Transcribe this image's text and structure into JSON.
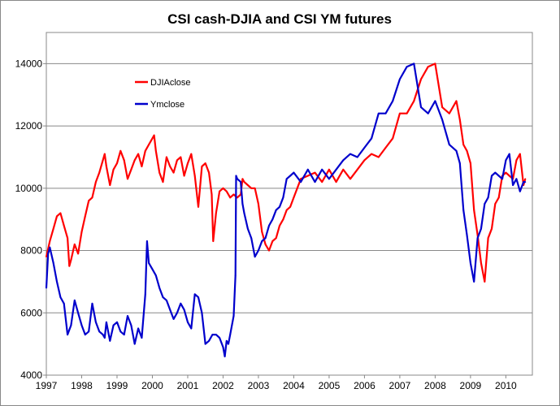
{
  "chart_data": {
    "type": "line",
    "title": "CSI  cash-DJIA  and  CSI  YM futures",
    "xlabel": "",
    "ylabel": "",
    "xlim": [
      1997,
      2010.75
    ],
    "ylim": [
      4000,
      15000
    ],
    "x_ticks": [
      1997,
      1998,
      1999,
      2000,
      2001,
      2002,
      2003,
      2004,
      2005,
      2006,
      2007,
      2008,
      2009,
      2010
    ],
    "x_tick_labels": [
      "1997",
      "1998",
      "1999",
      "2000",
      "2001",
      "2002",
      "2003",
      "2004",
      "2005",
      "2006",
      "2007",
      "2008",
      "2009",
      "2010"
    ],
    "y_ticks": [
      4000,
      6000,
      8000,
      10000,
      12000,
      14000
    ],
    "y_tick_labels": [
      "4000",
      "6000",
      "8000",
      "10000",
      "12000",
      "14000"
    ],
    "grid": true,
    "legend": "upper-left inside plot",
    "series": [
      {
        "name": "DJIAclose",
        "color": "#ff0000",
        "x": [
          1997.0,
          1997.1,
          1997.2,
          1997.3,
          1997.4,
          1997.5,
          1997.6,
          1997.65,
          1997.7,
          1997.8,
          1997.9,
          1998.0,
          1998.1,
          1998.2,
          1998.3,
          1998.4,
          1998.5,
          1998.6,
          1998.65,
          1998.7,
          1998.75,
          1998.8,
          1998.9,
          1999.0,
          1999.1,
          1999.2,
          1999.3,
          1999.4,
          1999.5,
          1999.6,
          1999.7,
          1999.8,
          1999.9,
          2000.0,
          2000.05,
          2000.1,
          2000.2,
          2000.3,
          2000.4,
          2000.5,
          2000.6,
          2000.7,
          2000.8,
          2000.9,
          2001.0,
          2001.1,
          2001.2,
          2001.3,
          2001.4,
          2001.5,
          2001.6,
          2001.68,
          2001.72,
          2001.8,
          2001.9,
          2002.0,
          2002.1,
          2002.2,
          2002.3,
          2002.4,
          2002.5,
          2002.55,
          2002.6,
          2002.7,
          2002.8,
          2002.9,
          2003.0,
          2003.1,
          2003.2,
          2003.3,
          2003.4,
          2003.5,
          2003.6,
          2003.7,
          2003.8,
          2003.9,
          2004.0,
          2004.2,
          2004.4,
          2004.6,
          2004.8,
          2005.0,
          2005.2,
          2005.4,
          2005.6,
          2005.8,
          2006.0,
          2006.2,
          2006.4,
          2006.6,
          2006.8,
          2007.0,
          2007.2,
          2007.4,
          2007.6,
          2007.8,
          2008.0,
          2008.2,
          2008.4,
          2008.6,
          2008.7,
          2008.8,
          2008.9,
          2009.0,
          2009.1,
          2009.2,
          2009.3,
          2009.4,
          2009.5,
          2009.6,
          2009.7,
          2009.8,
          2009.9,
          2010.0,
          2010.1,
          2010.2,
          2010.3,
          2010.4,
          2010.5,
          2010.55
        ],
        "y": [
          7800,
          8300,
          8700,
          9100,
          9200,
          8800,
          8400,
          7500,
          7700,
          8200,
          7900,
          8600,
          9100,
          9600,
          9700,
          10200,
          10500,
          10900,
          11100,
          10700,
          10400,
          10100,
          10600,
          10800,
          11200,
          10900,
          10300,
          10600,
          10900,
          11100,
          10700,
          11200,
          11400,
          11600,
          11700,
          11200,
          10500,
          10200,
          11000,
          10700,
          10500,
          10900,
          11000,
          10400,
          10800,
          11100,
          10400,
          9400,
          10700,
          10800,
          10500,
          9800,
          8300,
          9200,
          9900,
          10000,
          9900,
          9700,
          9800,
          9700,
          9800,
          10300,
          10200,
          10100,
          10000,
          10000,
          9500,
          8600,
          8200,
          8000,
          8300,
          8400,
          8800,
          9000,
          9300,
          9400,
          9700,
          10300,
          10400,
          10500,
          10200,
          10600,
          10200,
          10600,
          10300,
          10600,
          10900,
          11100,
          11000,
          11300,
          11600,
          12400,
          12400,
          12800,
          13500,
          13900,
          14000,
          12600,
          12400,
          12800,
          12200,
          11400,
          11200,
          10800,
          9300,
          8500,
          7600,
          7000,
          8400,
          8700,
          9500,
          9700,
          10400,
          10500,
          10400,
          10300,
          10900,
          11100,
          10100,
          10300
        ]
      },
      {
        "name": "Ymclose",
        "color": "#0000cc",
        "x": [
          1997.0,
          1997.05,
          1997.1,
          1997.2,
          1997.3,
          1997.4,
          1997.5,
          1997.6,
          1997.7,
          1997.8,
          1997.9,
          1998.0,
          1998.1,
          1998.2,
          1998.3,
          1998.4,
          1998.5,
          1998.6,
          1998.65,
          1998.7,
          1998.75,
          1998.8,
          1998.9,
          1999.0,
          1999.1,
          1999.2,
          1999.3,
          1999.4,
          1999.5,
          1999.6,
          1999.7,
          1999.8,
          1999.85,
          1999.9,
          2000.0,
          2000.1,
          2000.2,
          2000.3,
          2000.4,
          2000.5,
          2000.6,
          2000.7,
          2000.8,
          2000.9,
          2001.0,
          2001.1,
          2001.2,
          2001.3,
          2001.4,
          2001.5,
          2001.6,
          2001.7,
          2001.8,
          2001.9,
          2002.0,
          2002.05,
          2002.1,
          2002.15,
          2002.2,
          2002.3,
          2002.35,
          2002.37,
          2002.4,
          2002.5,
          2002.55,
          2002.6,
          2002.7,
          2002.8,
          2002.9,
          2003.0,
          2003.1,
          2003.2,
          2003.3,
          2003.4,
          2003.5,
          2003.6,
          2003.7,
          2003.8,
          2003.9,
          2004.0,
          2004.2,
          2004.4,
          2004.6,
          2004.8,
          2005.0,
          2005.2,
          2005.4,
          2005.6,
          2005.8,
          2006.0,
          2006.2,
          2006.4,
          2006.6,
          2006.8,
          2007.0,
          2007.2,
          2007.4,
          2007.6,
          2007.8,
          2008.0,
          2008.2,
          2008.4,
          2008.6,
          2008.7,
          2008.8,
          2008.9,
          2009.0,
          2009.1,
          2009.2,
          2009.3,
          2009.4,
          2009.5,
          2009.6,
          2009.7,
          2009.8,
          2009.9,
          2010.0,
          2010.1,
          2010.2,
          2010.3,
          2010.4,
          2010.5,
          2010.55
        ],
        "y": [
          6800,
          7900,
          8100,
          7600,
          7000,
          6500,
          6300,
          5300,
          5600,
          6400,
          6000,
          5600,
          5300,
          5400,
          6300,
          5700,
          5400,
          5300,
          5200,
          5700,
          5400,
          5100,
          5600,
          5700,
          5400,
          5300,
          5900,
          5600,
          5000,
          5500,
          5200,
          6600,
          8300,
          7600,
          7400,
          7200,
          6800,
          6500,
          6400,
          6100,
          5800,
          6000,
          6300,
          6100,
          5700,
          5500,
          6600,
          6500,
          6000,
          5000,
          5100,
          5300,
          5300,
          5200,
          4900,
          4600,
          5100,
          5000,
          5300,
          5900,
          7200,
          10400,
          10300,
          10200,
          9500,
          9200,
          8700,
          8400,
          7800,
          8000,
          8300,
          8400,
          8800,
          9000,
          9300,
          9400,
          9700,
          10300,
          10400,
          10500,
          10200,
          10600,
          10200,
          10600,
          10300,
          10600,
          10900,
          11100,
          11000,
          11300,
          11600,
          12400,
          12400,
          12800,
          13500,
          13900,
          14000,
          12600,
          12400,
          12800,
          12200,
          11400,
          11200,
          10800,
          9300,
          8500,
          7600,
          7000,
          8400,
          8700,
          9500,
          9700,
          10400,
          10500,
          10400,
          10300,
          10900,
          11100,
          10100,
          10300,
          9900,
          10200,
          10200
        ]
      }
    ]
  }
}
